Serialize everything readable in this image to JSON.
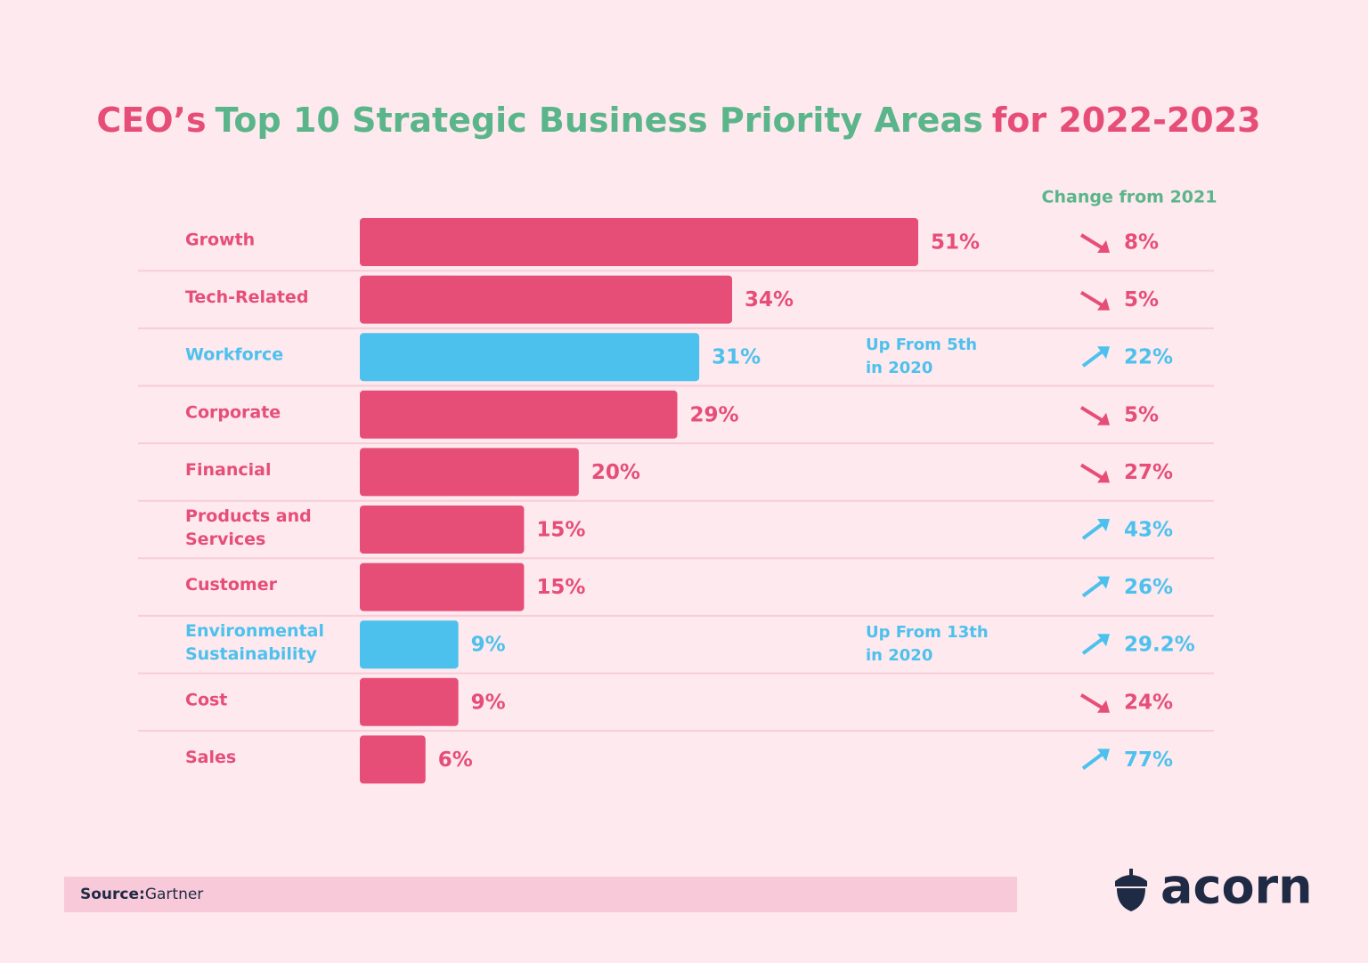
{
  "chart_data": {
    "type": "bar",
    "title_parts": [
      {
        "text": "CEO’s",
        "color": "#e64e78"
      },
      {
        "text": "Top 10 Strategic Business Priority Areas",
        "color": "#5bb58a"
      },
      {
        "text": "for 2022-2023",
        "color": "#e64e78"
      }
    ],
    "categories": [
      "Growth",
      "Tech-Related",
      "Workforce",
      "Corporate",
      "Financial",
      "Products and\nServices",
      "Customer",
      "Environmental\nSustainability",
      "Cost",
      "Sales"
    ],
    "values": [
      51,
      34,
      31,
      29,
      20,
      15,
      15,
      9,
      9,
      6
    ],
    "value_labels": [
      "51%",
      "34%",
      "31%",
      "29%",
      "20%",
      "15%",
      "15%",
      "9%",
      "9%",
      "6%"
    ],
    "colors": [
      "#e64e78",
      "#e64e78",
      "#4dc1ed",
      "#e64e78",
      "#e64e78",
      "#e64e78",
      "#e64e78",
      "#4dc1ed",
      "#e64e78",
      "#e64e78"
    ],
    "annotations": [
      {
        "index": 2,
        "text": "Up From 5th\nin 2020"
      },
      {
        "index": 7,
        "text": "Up From 13th\nin 2020"
      }
    ],
    "change_title": "Change from 2021",
    "change_values": [
      8,
      5,
      22,
      5,
      27,
      43,
      26,
      29.2,
      24,
      77
    ],
    "change_labels": [
      "8%",
      "5%",
      "22%",
      "5%",
      "27%",
      "43%",
      "26%",
      "29.2%",
      "24%",
      "77%"
    ],
    "change_directions": [
      "down",
      "down",
      "up",
      "down",
      "down",
      "up",
      "up",
      "up",
      "down",
      "up"
    ],
    "direction_colors": {
      "up": "#4dc1ed",
      "down": "#e64e78"
    },
    "source_label": "Source:",
    "source": "Gartner",
    "brand": "acorn"
  }
}
